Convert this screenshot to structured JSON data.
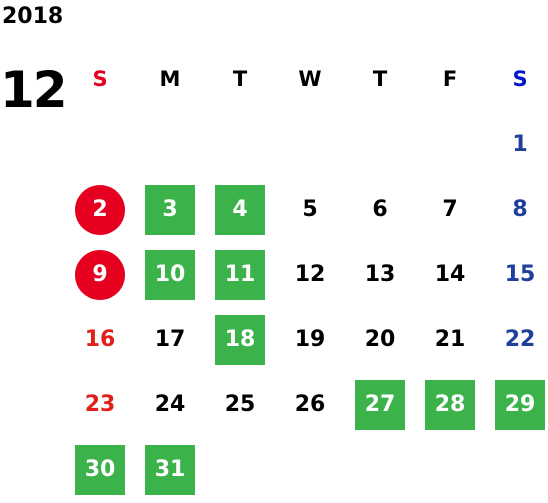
{
  "year": "2018",
  "month": "12",
  "colors": {
    "sunday_red": "#e0201b",
    "saturday_blue": "#1e3f9c",
    "default_text": "#000000",
    "holiday_green_bg": "#3cb34a",
    "sunday_circle_bg": "#e60020",
    "highlight_text": "#ffffff"
  },
  "weekdays": [
    {
      "label": "S",
      "color": "#e60020"
    },
    {
      "label": "M",
      "color": "#000000"
    },
    {
      "label": "T",
      "color": "#000000"
    },
    {
      "label": "W",
      "color": "#000000"
    },
    {
      "label": "T",
      "color": "#000000"
    },
    {
      "label": "F",
      "color": "#000000"
    },
    {
      "label": "S",
      "color": "#0018c8"
    }
  ],
  "weeks": [
    [
      {
        "day": ""
      },
      {
        "day": ""
      },
      {
        "day": ""
      },
      {
        "day": ""
      },
      {
        "day": ""
      },
      {
        "day": ""
      },
      {
        "day": "1",
        "style": "saturday"
      }
    ],
    [
      {
        "day": "2",
        "style": "circle"
      },
      {
        "day": "3",
        "style": "green"
      },
      {
        "day": "4",
        "style": "green"
      },
      {
        "day": "5"
      },
      {
        "day": "6"
      },
      {
        "day": "7"
      },
      {
        "day": "8",
        "style": "saturday"
      }
    ],
    [
      {
        "day": "9",
        "style": "circle"
      },
      {
        "day": "10",
        "style": "green"
      },
      {
        "day": "11",
        "style": "green"
      },
      {
        "day": "12"
      },
      {
        "day": "13"
      },
      {
        "day": "14"
      },
      {
        "day": "15",
        "style": "saturday"
      }
    ],
    [
      {
        "day": "16",
        "style": "sunday"
      },
      {
        "day": "17"
      },
      {
        "day": "18",
        "style": "green"
      },
      {
        "day": "19"
      },
      {
        "day": "20"
      },
      {
        "day": "21"
      },
      {
        "day": "22",
        "style": "saturday"
      }
    ],
    [
      {
        "day": "23",
        "style": "sunday"
      },
      {
        "day": "24"
      },
      {
        "day": "25"
      },
      {
        "day": "26"
      },
      {
        "day": "27",
        "style": "green"
      },
      {
        "day": "28",
        "style": "green"
      },
      {
        "day": "29",
        "style": "green"
      }
    ],
    [
      {
        "day": "30",
        "style": "green"
      },
      {
        "day": "31",
        "style": "green"
      },
      {
        "day": ""
      },
      {
        "day": ""
      },
      {
        "day": ""
      },
      {
        "day": ""
      },
      {
        "day": ""
      }
    ]
  ]
}
